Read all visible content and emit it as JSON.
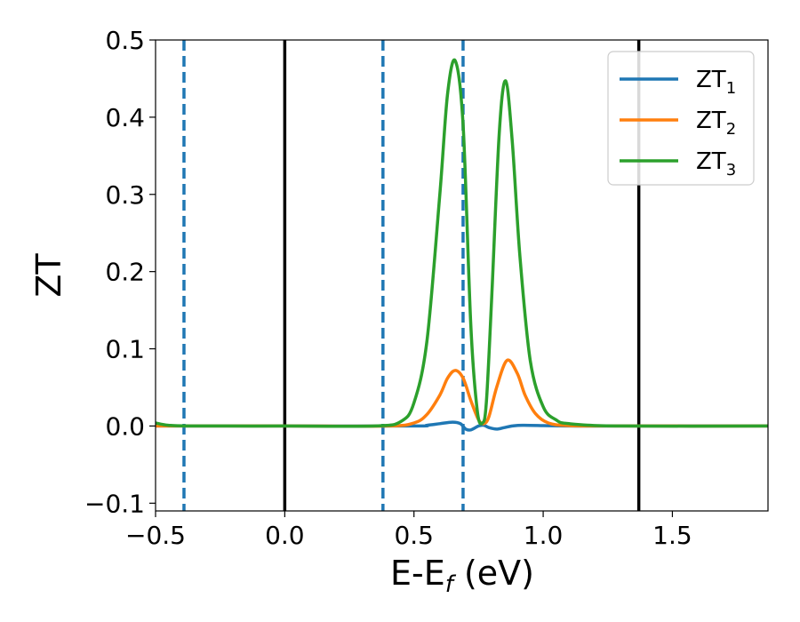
{
  "chart_data": {
    "type": "line",
    "ylabel": "ZT",
    "xlabel": "E-E",
    "xlabel_sub": "f",
    "xlabel_unit": " (eV)",
    "xlim": [
      -0.5,
      1.87
    ],
    "ylim": [
      -0.11,
      0.5
    ],
    "xticks": [
      -0.5,
      0.0,
      0.5,
      1.0,
      1.5
    ],
    "xtick_labels": [
      "−0.5",
      "0.0",
      "0.5",
      "1.0",
      "1.5"
    ],
    "yticks": [
      -0.1,
      0.0,
      0.1,
      0.2,
      0.3,
      0.4,
      0.5
    ],
    "ytick_labels": [
      "−0.1",
      "0.0",
      "0.1",
      "0.2",
      "0.3",
      "0.4",
      "0.5"
    ],
    "legend_position": "top-right",
    "vlines": [
      {
        "x": -0.39,
        "style": "dashed",
        "color": "#1f77b4"
      },
      {
        "x": 0.0,
        "style": "solid",
        "color": "#000000"
      },
      {
        "x": 0.38,
        "style": "dashed",
        "color": "#1f77b4"
      },
      {
        "x": 0.69,
        "style": "dashed",
        "color": "#1f77b4"
      },
      {
        "x": 1.37,
        "style": "solid",
        "color": "#000000"
      }
    ],
    "series": [
      {
        "name": "ZT",
        "sub": "1",
        "color": "#1f77b4",
        "x": [
          -0.5,
          0.0,
          0.5,
          0.55,
          0.6,
          0.65,
          0.68,
          0.7,
          0.72,
          0.75,
          0.77,
          0.79,
          0.82,
          0.85,
          0.88,
          0.92,
          1.0,
          1.1,
          1.3,
          1.87
        ],
        "y": [
          0.0,
          0.0,
          0.0,
          0.001,
          0.003,
          0.005,
          0.003,
          -0.004,
          -0.005,
          0.0,
          0.001,
          -0.002,
          -0.004,
          -0.002,
          0.0,
          0.001,
          0.0005,
          0.0,
          0.0,
          0.0
        ]
      },
      {
        "name": "ZT",
        "sub": "2",
        "color": "#ff7f0e",
        "x": [
          -0.5,
          0.0,
          0.4,
          0.5,
          0.55,
          0.6,
          0.63,
          0.66,
          0.69,
          0.72,
          0.75,
          0.77,
          0.79,
          0.82,
          0.86,
          0.9,
          0.93,
          0.97,
          1.02,
          1.1,
          1.3,
          1.87
        ],
        "y": [
          0.0,
          0.0,
          0.0,
          0.004,
          0.015,
          0.04,
          0.062,
          0.072,
          0.062,
          0.033,
          0.008,
          0.003,
          0.012,
          0.05,
          0.085,
          0.068,
          0.04,
          0.016,
          0.004,
          0.0005,
          0.0,
          0.0
        ]
      },
      {
        "name": "ZT",
        "sub": "3",
        "color": "#2ca02c",
        "x": [
          -0.5,
          -0.45,
          -0.35,
          0.0,
          0.35,
          0.45,
          0.5,
          0.55,
          0.6,
          0.63,
          0.66,
          0.69,
          0.72,
          0.745,
          0.765,
          0.78,
          0.8,
          0.83,
          0.855,
          0.88,
          0.91,
          0.95,
          1.0,
          1.05,
          1.1,
          1.3,
          1.87
        ],
        "y": [
          0.004,
          0.001,
          0.0,
          0.0,
          0.0,
          0.006,
          0.03,
          0.11,
          0.3,
          0.43,
          0.473,
          0.39,
          0.13,
          0.02,
          0.004,
          0.03,
          0.16,
          0.38,
          0.447,
          0.37,
          0.22,
          0.085,
          0.025,
          0.008,
          0.003,
          0.0,
          0.0
        ]
      }
    ]
  }
}
